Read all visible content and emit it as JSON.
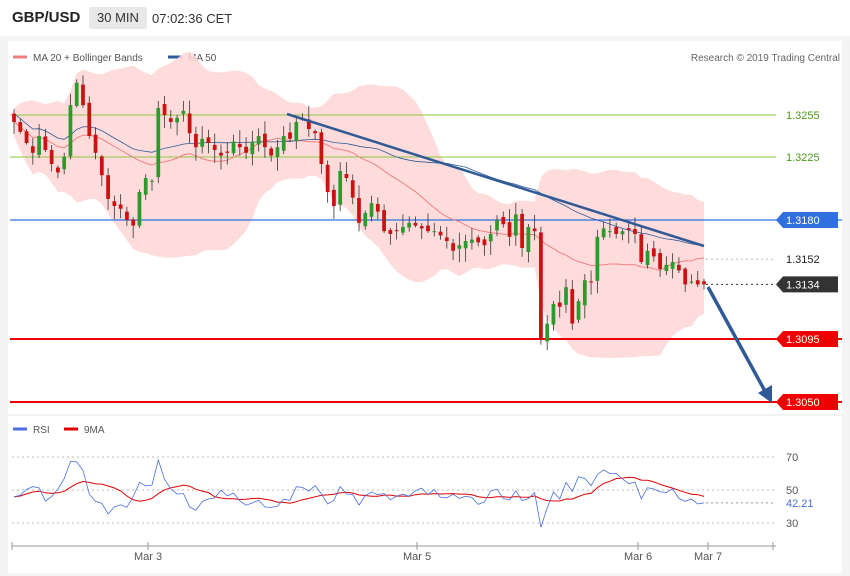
{
  "header": {
    "symbol": "GBP/USD",
    "timeframe": "30 MIN",
    "time": "07:02:36 CET"
  },
  "price_panel": {
    "legend": [
      {
        "label": "MA 20 + Bollinger Bands",
        "color": "#f08080"
      },
      {
        "label": "MA 50",
        "color": "#2f5a96"
      }
    ],
    "credit": "Research © 2019 Trading Central",
    "levels": [
      {
        "value": "1.3255",
        "kind": "target",
        "color": "#8cc63f",
        "text_color": "#4a9a1a"
      },
      {
        "value": "1.3225",
        "kind": "target",
        "color": "#8cc63f",
        "text_color": "#4a9a1a"
      },
      {
        "value": "1.3180",
        "kind": "pivot",
        "color": "#2f6fe0",
        "text_color": "#ffffff"
      },
      {
        "value": "1.3152",
        "kind": "reference",
        "color": "#bbbbbb",
        "text_color": "#222222"
      },
      {
        "value": "1.3134",
        "kind": "last",
        "color": "#333333",
        "text_color": "#ffffff"
      },
      {
        "value": "1.3095",
        "kind": "support",
        "color": "#ee0000",
        "text_color": "#ffffff"
      },
      {
        "value": "1.3050",
        "kind": "support",
        "color": "#ee0000",
        "text_color": "#ffffff"
      }
    ]
  },
  "rsi_panel": {
    "legend": [
      {
        "label": "RSI",
        "color": "#4a6ee0"
      },
      {
        "label": "9MA",
        "color": "#e00000"
      }
    ],
    "ticks": [
      "70",
      "50",
      "30"
    ],
    "current": "42.21"
  },
  "x_labels": [
    "Mar 3",
    "Mar 5",
    "Mar 6",
    "Mar 7"
  ],
  "colors": {
    "up": "#2e9a2e",
    "down": "#cc1111",
    "band": "#ffd6d6"
  },
  "chart_data": {
    "type": "candlestick",
    "y_range": [
      1.3044,
      1.3294
    ],
    "closes": [
      1.325,
      1.3243,
      1.3235,
      1.3228,
      1.324,
      1.323,
      1.322,
      1.3214,
      1.3225,
      1.3262,
      1.3278,
      1.3262,
      1.324,
      1.3228,
      1.3212,
      1.3195,
      1.319,
      1.3188,
      1.318,
      1.3176,
      1.32,
      1.321,
      1.3208,
      1.326,
      1.3255,
      1.325,
      1.3253,
      1.3258,
      1.3242,
      1.3232,
      1.3238,
      1.3235,
      1.323,
      1.3226,
      1.3228,
      1.3236,
      1.3232,
      1.3228,
      1.3236,
      1.324,
      1.3232,
      1.3226,
      1.3232,
      1.324,
      1.3238,
      1.325,
      1.3252,
      1.3245,
      1.3242,
      1.322,
      1.32,
      1.319,
      1.3215,
      1.321,
      1.3196,
      1.3178,
      1.3185,
      1.3192,
      1.3186,
      1.3172,
      1.317,
      1.3172,
      1.3175,
      1.3178,
      1.3176,
      1.3174,
      1.3172,
      1.3172,
      1.3169,
      1.3165,
      1.3158,
      1.3162,
      1.3165,
      1.3166,
      1.3164,
      1.3162,
      1.317,
      1.318,
      1.3177,
      1.3168,
      1.3184,
      1.316,
      1.3175,
      1.3172,
      1.3095,
      1.3106,
      1.312,
      1.3118,
      1.3132,
      1.3106,
      1.3122,
      1.3137,
      1.3136,
      1.3168,
      1.3174,
      1.3172,
      1.317,
      1.3172,
      1.3173,
      1.317,
      1.315,
      1.3158,
      1.3154,
      1.3145,
      1.3148,
      1.315,
      1.3144,
      1.3134,
      1.3136,
      1.3134,
      1.3134
    ],
    "x_labels": [
      "Mar 3",
      "Mar 5",
      "Mar 6",
      "Mar 7"
    ],
    "levels": [
      1.3255,
      1.3225,
      1.318,
      1.3152,
      1.3134,
      1.3095,
      1.305
    ],
    "rsi": {
      "ticks": [
        70,
        50,
        30
      ],
      "current": 42.21
    }
  }
}
